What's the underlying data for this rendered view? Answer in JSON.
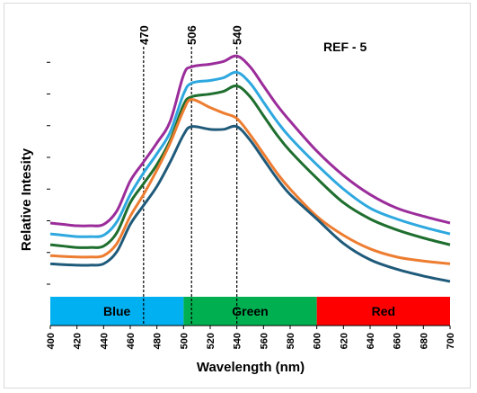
{
  "chart_data": {
    "type": "line",
    "annotation": "REF - 5",
    "xlabel": "Wavelength (nm)",
    "ylabel": "Relative Intesity",
    "xlim": [
      400,
      700
    ],
    "ylim": [
      0,
      10
    ],
    "x_ticks": [
      "400",
      "420",
      "440",
      "460",
      "480",
      "500",
      "520",
      "540",
      "560",
      "580",
      "600",
      "620",
      "640",
      "660",
      "680",
      "700"
    ],
    "y_tick_count": 8,
    "vlines": [
      {
        "x": 470,
        "label": "470"
      },
      {
        "x": 506,
        "label": "506"
      },
      {
        "x": 540,
        "label": "540"
      }
    ],
    "bands": [
      {
        "label": "Blue",
        "from": 400,
        "to": 500,
        "color": "#00b0f0"
      },
      {
        "label": "Green",
        "from": 500,
        "to": 600,
        "color": "#00b050"
      },
      {
        "label": "Red",
        "from": 600,
        "to": 700,
        "color": "#ff0000"
      }
    ],
    "x": [
      400,
      410,
      420,
      430,
      440,
      450,
      460,
      470,
      480,
      490,
      500,
      506,
      520,
      530,
      540,
      550,
      560,
      570,
      580,
      600,
      620,
      640,
      660,
      680,
      700
    ],
    "series": [
      {
        "color": "#9b2d9b",
        "values": [
          2.45,
          2.4,
          2.35,
          2.35,
          2.4,
          2.9,
          4.0,
          4.7,
          5.4,
          6.2,
          7.9,
          8.2,
          8.3,
          8.4,
          8.6,
          8.2,
          7.5,
          6.8,
          6.2,
          5.1,
          4.2,
          3.5,
          3.0,
          2.7,
          2.45
        ]
      },
      {
        "color": "#2ea8df",
        "values": [
          2.05,
          2.0,
          1.95,
          1.95,
          2.0,
          2.5,
          3.5,
          4.3,
          5.0,
          5.8,
          7.2,
          7.6,
          7.7,
          7.8,
          8.0,
          7.6,
          6.9,
          6.2,
          5.6,
          4.6,
          3.7,
          3.0,
          2.6,
          2.3,
          2.05
        ]
      },
      {
        "color": "#1e6e2e",
        "values": [
          1.65,
          1.6,
          1.55,
          1.55,
          1.6,
          2.1,
          3.2,
          3.9,
          4.6,
          5.5,
          6.8,
          7.1,
          7.2,
          7.3,
          7.5,
          7.1,
          6.4,
          5.7,
          5.1,
          4.1,
          3.2,
          2.6,
          2.2,
          1.9,
          1.65
        ]
      },
      {
        "color": "#ed7d31",
        "values": [
          1.25,
          1.22,
          1.2,
          1.2,
          1.25,
          1.7,
          2.7,
          3.5,
          4.4,
          5.4,
          6.6,
          7.0,
          6.7,
          6.5,
          6.3,
          5.7,
          5.0,
          4.3,
          3.7,
          2.7,
          2.0,
          1.5,
          1.2,
          1.05,
          0.95
        ]
      },
      {
        "color": "#1f5a7a",
        "values": [
          0.95,
          0.92,
          0.9,
          0.9,
          0.95,
          1.4,
          2.4,
          3.1,
          3.8,
          4.7,
          5.7,
          6.0,
          5.9,
          5.9,
          6.0,
          5.5,
          4.8,
          4.1,
          3.5,
          2.6,
          1.7,
          1.1,
          0.75,
          0.5,
          0.3
        ]
      }
    ]
  }
}
